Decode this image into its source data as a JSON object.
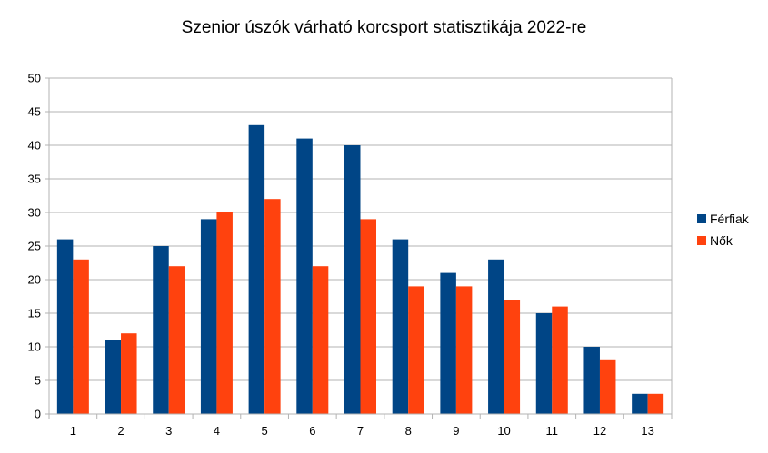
{
  "chart_data": {
    "type": "bar",
    "title": "Szenior úszók várható korcsport statisztikája 2022-re",
    "categories": [
      "1",
      "2",
      "3",
      "4",
      "5",
      "6",
      "7",
      "8",
      "9",
      "10",
      "11",
      "12",
      "13"
    ],
    "series": [
      {
        "name": "Férfiak",
        "color": "#004586",
        "values": [
          26,
          11,
          25,
          29,
          43,
          41,
          40,
          26,
          21,
          23,
          15,
          10,
          3
        ]
      },
      {
        "name": "Nők",
        "color": "#ff420e",
        "values": [
          23,
          12,
          22,
          30,
          32,
          22,
          29,
          19,
          19,
          17,
          16,
          8,
          3
        ]
      }
    ],
    "ylim": [
      0,
      50
    ],
    "yticks": [
      "0",
      "5",
      "10",
      "15",
      "20",
      "25",
      "30",
      "35",
      "40",
      "45",
      "50"
    ],
    "grid": true,
    "legend": "right"
  }
}
